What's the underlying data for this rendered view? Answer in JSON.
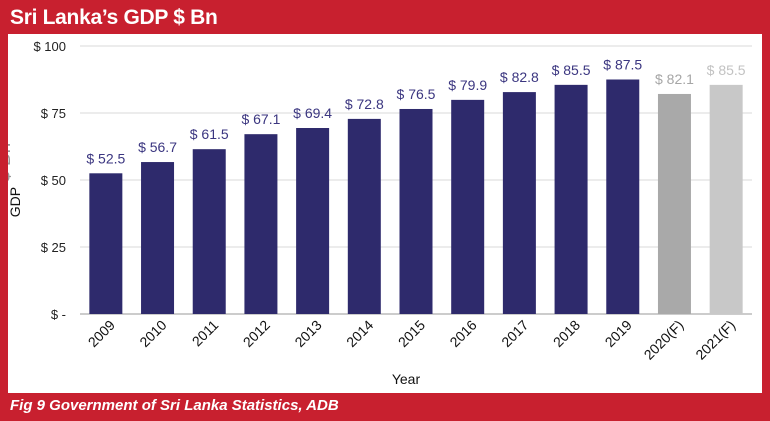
{
  "header": {
    "title": "Sri Lanka’s GDP $ Bn"
  },
  "footer": {
    "source": "Fig 9 Government of Sri Lanka Statistics, ADB"
  },
  "chart_data": {
    "type": "bar",
    "categories": [
      "2009",
      "2010",
      "2011",
      "2012",
      "2013",
      "2014",
      "2015",
      "2016",
      "2017",
      "2018",
      "2019",
      "2020(F)",
      "2021(F)"
    ],
    "values": [
      52.5,
      56.7,
      61.5,
      67.1,
      69.4,
      72.8,
      76.5,
      79.9,
      82.8,
      85.5,
      87.5,
      82.1,
      85.5
    ],
    "value_labels": [
      "$ 52.5",
      "$ 56.7",
      "$ 61.5",
      "$ 67.1",
      "$ 69.4",
      "$ 72.8",
      "$ 76.5",
      "$ 79.9",
      "$ 82.8",
      "$ 85.5",
      "$ 87.5",
      "$ 82.1",
      "$ 85.5"
    ],
    "forecast": [
      false,
      false,
      false,
      false,
      false,
      false,
      false,
      false,
      false,
      false,
      false,
      true,
      true
    ],
    "xlabel": "Year",
    "ylabel": "GDP",
    "ylabel_unit": "$ Bn",
    "ylim": [
      0,
      100
    ],
    "yticks": [
      0,
      25,
      50,
      75,
      100
    ],
    "ytick_labels": [
      "$ -",
      "$ 25",
      "$ 50",
      "$ 75",
      "$ 100"
    ],
    "grid": true,
    "colors": {
      "actual": "#2e2a6c",
      "forecast": [
        "#a9a9a9",
        "#c8c8c8"
      ],
      "actual_label": "#3b3680",
      "forecast_label": [
        "#a6a6a6",
        "#c2c2c2"
      ],
      "frame": "#c8202f"
    }
  }
}
